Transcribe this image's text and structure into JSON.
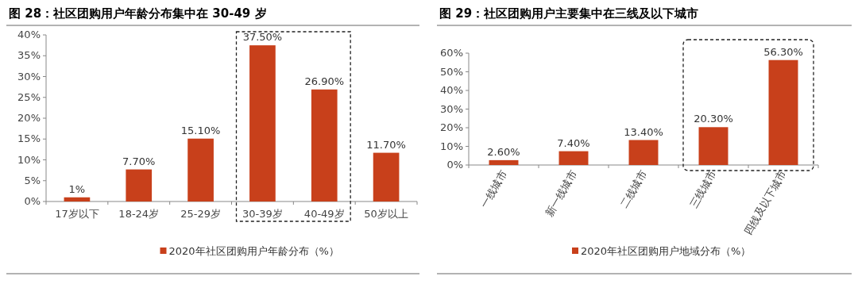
{
  "chart_data": [
    {
      "type": "bar",
      "title": "图 28：社区团购用户年龄分布集中在 30-49 岁",
      "categories": [
        "17岁以下",
        "18-24岁",
        "25-29岁",
        "30-39岁",
        "40-49岁",
        "50岁以上"
      ],
      "series": [
        {
          "name": "2020年社区团购用户年龄分布（%）",
          "color": "#c8401b",
          "values": [
            1,
            7.7,
            15.1,
            37.5,
            26.9,
            11.7
          ],
          "value_labels": [
            "1%",
            "7.70%",
            "15.10%",
            "37.50%",
            "26.90%",
            "11.70%"
          ]
        }
      ],
      "ylim": [
        0,
        40
      ],
      "yticks": [
        {
          "value": 0,
          "label": "0%"
        },
        {
          "value": 5,
          "label": "5%"
        },
        {
          "value": 10,
          "label": "10%"
        },
        {
          "value": 15,
          "label": "15%"
        },
        {
          "value": 20,
          "label": "20%"
        },
        {
          "value": 25,
          "label": "25%"
        },
        {
          "value": 30,
          "label": "30%"
        },
        {
          "value": 35,
          "label": "35%"
        },
        {
          "value": 40,
          "label": "40%"
        }
      ],
      "legend": "bottom"
    },
    {
      "type": "bar",
      "title": "图 29：社区团购用户主要集中在三线及以下城市",
      "categories": [
        "一线城市",
        "新一线城市",
        "二线城市",
        "三线城市",
        "四线及以下城市"
      ],
      "series": [
        {
          "name": "2020年社区团购用户地域分布（%）",
          "color": "#c8401b",
          "values": [
            2.6,
            7.4,
            13.4,
            20.3,
            56.3
          ],
          "value_labels": [
            "2.60%",
            "7.40%",
            "13.40%",
            "20.30%",
            "56.30%"
          ]
        }
      ],
      "ylim": [
        0,
        60
      ],
      "yticks": [
        {
          "value": 0,
          "label": "0%"
        },
        {
          "value": 10,
          "label": "10%"
        },
        {
          "value": 20,
          "label": "20%"
        },
        {
          "value": 30,
          "label": "30%"
        },
        {
          "value": 40,
          "label": "40%"
        },
        {
          "value": 50,
          "label": "50%"
        },
        {
          "value": 60,
          "label": "60%"
        }
      ],
      "legend": "bottom"
    }
  ]
}
